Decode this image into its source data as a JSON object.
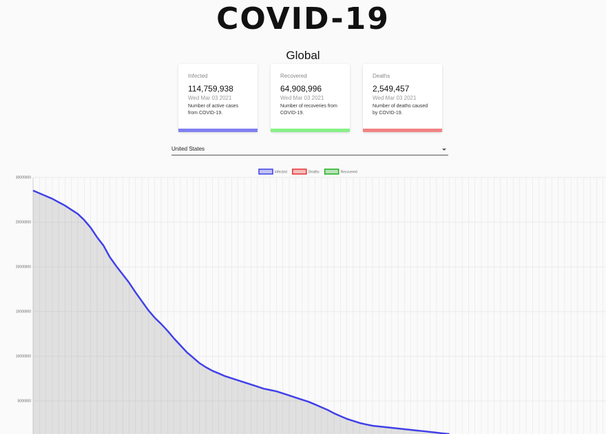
{
  "header": {
    "title": "COVID-19",
    "subtitle": "Global"
  },
  "cards": [
    {
      "label": "Infected",
      "value": "114,759,938",
      "date": "Wed Mar 03 2021",
      "description": "Number of active cases from COVID-19.",
      "color": "#7f7ff0"
    },
    {
      "label": "Recovered",
      "value": "64,908,996",
      "date": "Wed Mar 03 2021",
      "description": "Number of recoveries from COVID-19.",
      "color": "#88f088"
    },
    {
      "label": "Deaths",
      "value": "2,549,457",
      "date": "Wed Mar 03 2021",
      "description": "Number of deaths caused by COVID-19.",
      "color": "#f08484"
    }
  ],
  "country_select": {
    "selected": "United States"
  },
  "chart_data": {
    "type": "line",
    "categories": [
      null,
      null,
      null,
      null,
      null,
      null,
      null,
      null,
      null,
      null,
      null,
      null,
      null,
      null,
      null,
      null,
      null,
      null,
      null,
      null,
      null,
      null,
      null,
      null,
      null,
      null,
      null,
      null,
      null,
      null,
      null,
      null,
      null,
      null,
      null,
      null,
      null,
      null,
      null,
      null,
      null,
      null,
      null,
      null,
      null,
      null,
      null,
      null,
      null,
      null,
      null,
      null,
      null,
      null,
      null,
      null,
      null,
      null,
      null,
      null,
      null,
      null,
      null,
      null,
      null,
      null
    ],
    "series": [
      {
        "name": "Infected",
        "color": "#4040e8",
        "fill": true,
        "values": [
          28540000,
          28230000,
          27920000,
          27620000,
          27230000,
          26850000,
          26380000,
          25920000,
          25230000,
          24380000,
          23310000,
          22380000,
          21080000,
          20080000,
          19150000,
          18230000,
          17150000,
          16150000,
          15150000,
          14310000,
          13620000,
          12850000,
          12000000,
          11230000,
          10460000,
          9850000,
          9230000,
          8770000,
          8380000,
          8080000,
          7770000,
          7540000,
          7310000,
          7080000,
          6850000,
          6620000,
          6380000,
          6230000,
          6080000,
          5850000,
          5620000,
          5380000,
          5150000,
          4920000,
          4620000,
          4310000,
          4000000,
          3620000,
          3310000,
          3000000,
          2770000,
          2540000,
          2380000,
          2230000,
          2150000,
          2080000,
          2000000,
          1920000,
          1850000,
          1770000,
          1690000,
          1620000,
          1540000,
          1460000,
          1380000,
          1310000
        ]
      },
      {
        "name": "Deaths",
        "color": "#e83030"
      },
      {
        "name": "Recovered",
        "color": "#20b020"
      }
    ],
    "ylim": [
      0,
      30000000
    ],
    "yticks": [
      5000000,
      10000000,
      15000000,
      20000000,
      25000000,
      30000000
    ],
    "grid": true
  }
}
